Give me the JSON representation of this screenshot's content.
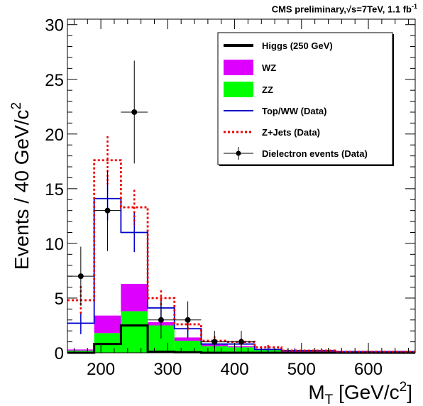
{
  "header": {
    "prefix": "CMS preliminary,",
    "sqrt_s": "√s=7TeV, 1.1 fb",
    "exp": "-1"
  },
  "chart_data": {
    "type": "bar",
    "stacked": true,
    "xlabel_main": "M",
    "xlabel_sub": "T",
    "xlabel_rest": " [GeV/c",
    "xlabel_sup": "2",
    "xlabel_end": "]",
    "ylabel_main": "Events / 40 GeV/c",
    "ylabel_sup": "2",
    "xlim": [
      150,
      670
    ],
    "ylim": [
      0,
      30.5
    ],
    "xticks": [
      200,
      300,
      400,
      500,
      600
    ],
    "yticks": [
      0,
      5,
      10,
      15,
      20,
      25,
      30
    ],
    "bin_edges": [
      150,
      190,
      230,
      270,
      310,
      350,
      390,
      430,
      470,
      510,
      550,
      590,
      630,
      670
    ],
    "stack": [
      {
        "name": "ZZ",
        "color": "#00ff00",
        "values": [
          0.2,
          1.8,
          3.8,
          2.5,
          1.1,
          0.6,
          0.5,
          0.3,
          0.1,
          0.1,
          0.05,
          0.05,
          0.05
        ]
      },
      {
        "name": "WZ",
        "color": "#dd00ff",
        "values": [
          0.1,
          1.6,
          2.5,
          0.3,
          0.3,
          0.2,
          0.1,
          0.05,
          0.05,
          0.05,
          0.02,
          0.02,
          0.02
        ]
      }
    ],
    "higgs": {
      "name": "Higgs (250 GeV)",
      "color": "#000000",
      "values": [
        0.0,
        0.8,
        2.5,
        0.1,
        0.05,
        0.0,
        0.0,
        0.0,
        0.0,
        0.0,
        0.0,
        0.0,
        0.0
      ]
    },
    "top_ww": {
      "name": "Top/WW (Data)",
      "color": "#0000cc",
      "values": [
        2.7,
        14.1,
        11.0,
        4.1,
        2.2,
        0.8,
        0.8,
        0.3,
        0.2,
        0.2,
        0.1,
        0.1,
        0.1
      ],
      "errors": [
        1.0,
        2.0,
        1.8,
        1.0,
        0.8,
        0.4,
        0.4,
        0.2,
        0.2,
        0.2,
        0.1,
        0.1,
        0.1
      ]
    },
    "zjets": {
      "name": "Z+Jets (Data)",
      "color": "#ee0000",
      "values": [
        4.8,
        17.6,
        13.3,
        5.0,
        2.6,
        1.1,
        1.0,
        0.5,
        0.2,
        0.2,
        0.1,
        0.1,
        0.1
      ],
      "errors": [
        1.3,
        2.2,
        1.6,
        0.7,
        0.5,
        0.4,
        0.3,
        0.2,
        0.1,
        0.1,
        0.1,
        0.1,
        0.1
      ]
    },
    "data": {
      "name": "Dielectron events (Data)",
      "color": "#000000",
      "x": [
        170,
        210,
        250,
        290,
        330,
        370,
        410
      ],
      "y": [
        7,
        13,
        22,
        3,
        3,
        1,
        1
      ],
      "err_up": [
        2.7,
        3.7,
        4.7,
        1.7,
        1.7,
        1.0,
        1.0
      ],
      "err_down": [
        2.7,
        3.7,
        4.7,
        1.7,
        1.7,
        1.0,
        1.0
      ]
    },
    "legend": {
      "position": "top-right",
      "entries": [
        "Higgs (250 GeV)",
        "WZ",
        "ZZ",
        "Top/WW (Data)",
        "Z+Jets (Data)",
        "Dielectron events (Data)"
      ]
    }
  }
}
